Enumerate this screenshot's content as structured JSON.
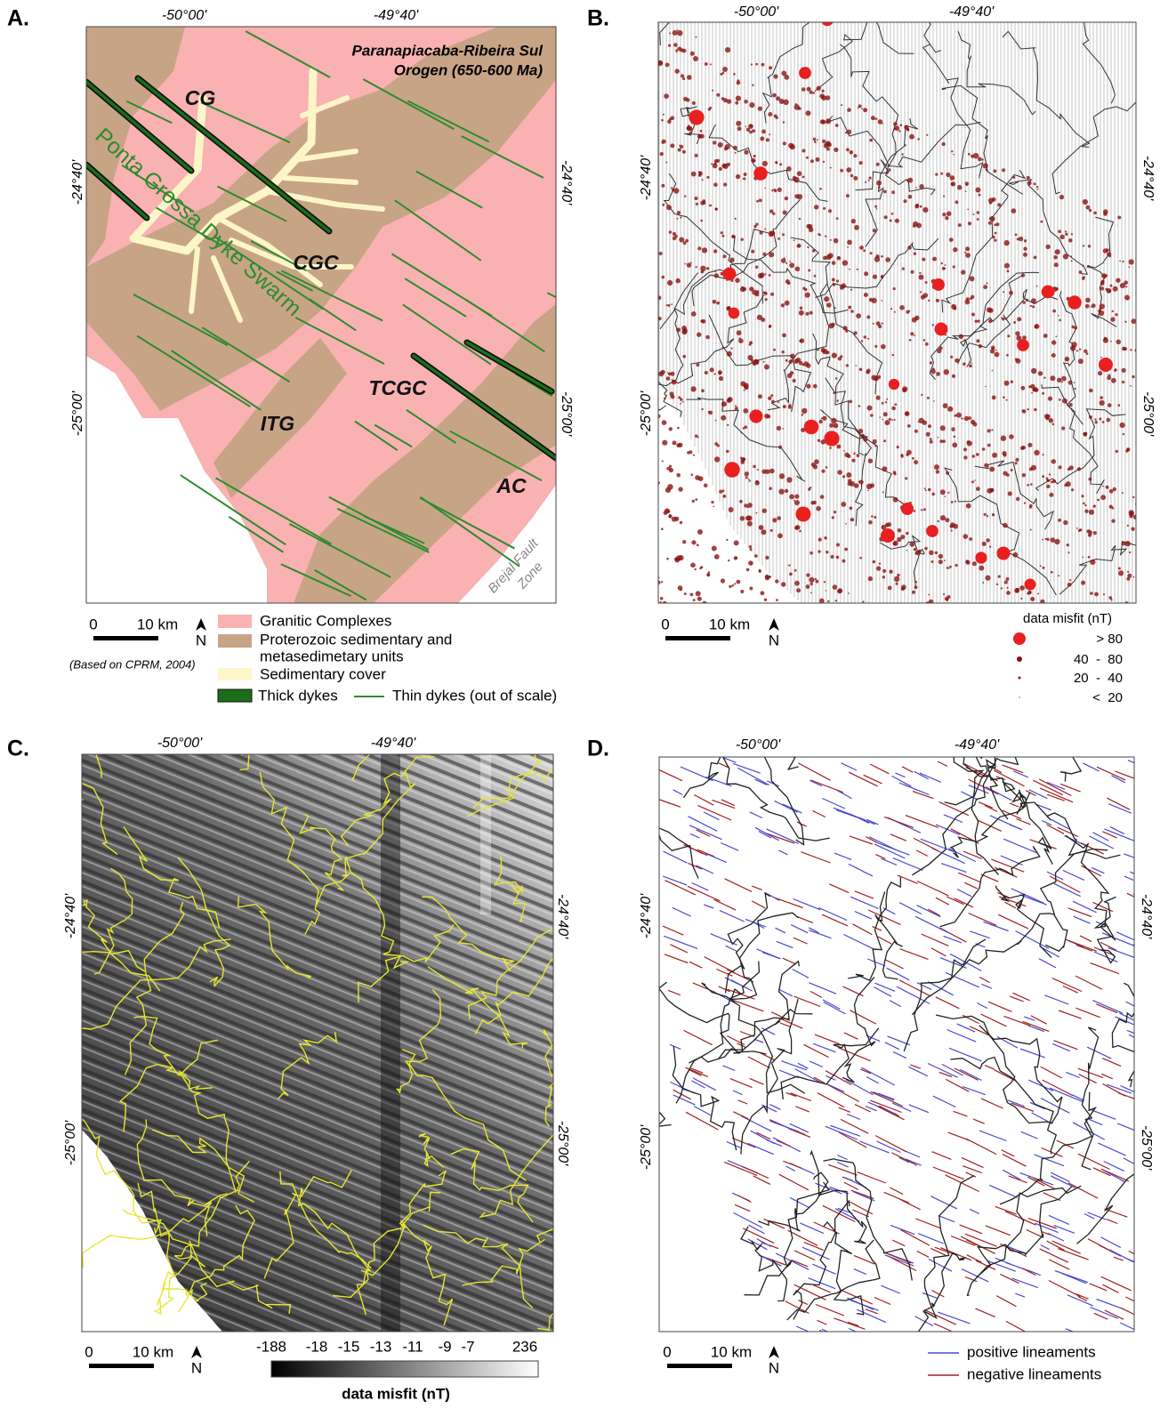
{
  "graticule": {
    "lon": [
      "-50°00'",
      "-49°40'"
    ],
    "lat": [
      "-24°40'",
      "-25°00'"
    ]
  },
  "scale_bar": {
    "zero": "0",
    "distance": "10 km",
    "north": "N"
  },
  "panel_a": {
    "label": "A.",
    "map_labels": {
      "orogen_line1": "Paranapiacaba-Ribeira Sul",
      "orogen_line2": "Orogen (650-600 Ma)",
      "cg": "CG",
      "cgc": "CGC",
      "tcgc": "TCGC",
      "itg": "ITG",
      "ac": "AC",
      "swarm": "Ponta Grossa Dyke Swarm",
      "fault_line1": "Brejal Fault",
      "fault_line2": "Zone"
    },
    "source": "(Based on CPRM, 2004)",
    "legend": {
      "granitic": "Granitic Complexes",
      "proterozoic_line1": "Proterozoic sedimentary and",
      "proterozoic_line2": "metasedimetary units",
      "sedimentary": "Sedimentary cover",
      "thick": "Thick dykes",
      "thin": "Thin dykes (out of scale)"
    }
  },
  "panel_b": {
    "label": "B.",
    "legend_title": "data misfit (nT)",
    "legend_rows": [
      "> 80",
      "40  -  80",
      "20  -  40",
      "<  20"
    ]
  },
  "panel_c": {
    "label": "C.",
    "colorbar_ticks": [
      "-188",
      "-18",
      "-15",
      "-13",
      "-11",
      "-9",
      "-7",
      "236"
    ],
    "colorbar_title": "data misfit (nT)"
  },
  "panel_d": {
    "label": "D.",
    "legend": {
      "positive": "positive lineaments",
      "negative": "negative lineaments"
    }
  }
}
